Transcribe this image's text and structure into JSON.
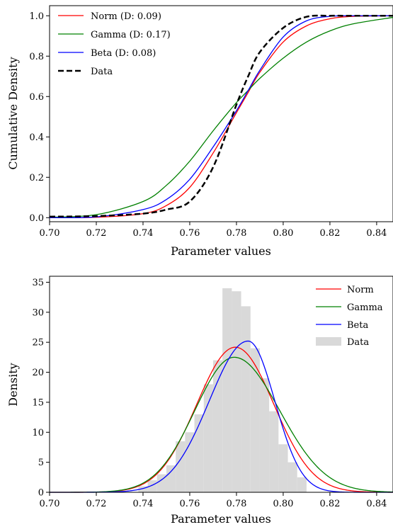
{
  "colors": {
    "norm": "#ff0000",
    "gamma": "#008000",
    "beta": "#0000ff",
    "data_line": "#000000",
    "data_hist": "#d9d9d9"
  },
  "chart_data": [
    {
      "type": "line",
      "xlabel": "Parameter values",
      "ylabel": "Cumulative Density",
      "xlim": [
        0.7,
        0.847
      ],
      "ylim": [
        -0.02,
        1.05
      ],
      "xticks": [
        "0.70",
        "0.72",
        "0.74",
        "0.76",
        "0.78",
        "0.80",
        "0.82",
        "0.84"
      ],
      "yticks": [
        "0.0",
        "0.2",
        "0.4",
        "0.6",
        "0.8",
        "1.0"
      ],
      "legend": "top-left",
      "x": [
        0.7,
        0.72,
        0.74,
        0.75,
        0.76,
        0.77,
        0.78,
        0.785,
        0.79,
        0.8,
        0.81,
        0.82,
        0.83,
        0.847
      ],
      "series": [
        {
          "name": "Norm (D: 0.09)",
          "style": "solid",
          "color_key": "norm",
          "values": [
            0.0,
            0.002,
            0.02,
            0.06,
            0.15,
            0.32,
            0.52,
            0.62,
            0.72,
            0.87,
            0.95,
            0.985,
            0.997,
            1.0
          ]
        },
        {
          "name": "Gamma (D: 0.17)",
          "style": "solid",
          "color_key": "gamma",
          "values": [
            0.002,
            0.015,
            0.08,
            0.16,
            0.28,
            0.43,
            0.57,
            0.63,
            0.69,
            0.79,
            0.87,
            0.925,
            0.96,
            0.992
          ]
        },
        {
          "name": "Beta (D: 0.08)",
          "style": "solid",
          "color_key": "beta",
          "values": [
            0.0,
            0.004,
            0.04,
            0.09,
            0.19,
            0.35,
            0.53,
            0.63,
            0.73,
            0.895,
            0.975,
            0.997,
            1.0,
            1.0
          ]
        },
        {
          "name": "Data",
          "style": "dashed",
          "color_key": "data_line",
          "values": [
            0.005,
            0.008,
            0.02,
            0.04,
            0.08,
            0.25,
            0.56,
            0.7,
            0.82,
            0.94,
            0.995,
            1.0,
            1.0,
            1.0
          ]
        }
      ]
    },
    {
      "type": "bar",
      "xlabel": "Parameter values",
      "ylabel": "Density",
      "xlim": [
        0.7,
        0.847
      ],
      "ylim": [
        0,
        36
      ],
      "xticks": [
        "0.70",
        "0.72",
        "0.74",
        "0.76",
        "0.78",
        "0.80",
        "0.82",
        "0.84"
      ],
      "yticks": [
        "0",
        "5",
        "10",
        "15",
        "20",
        "25",
        "30",
        "35"
      ],
      "legend": "top-right",
      "hist": {
        "name": "Data",
        "color_key": "data_hist",
        "bin_width": 0.004,
        "bin_starts": [
          0.738,
          0.742,
          0.746,
          0.75,
          0.754,
          0.758,
          0.762,
          0.766,
          0.77,
          0.774,
          0.778,
          0.782,
          0.786,
          0.79,
          0.794,
          0.798,
          0.802,
          0.806
        ],
        "values": [
          1.0,
          2.0,
          3.0,
          4.5,
          8.5,
          10.0,
          13.0,
          18.0,
          22.0,
          34.0,
          33.5,
          31.0,
          24.0,
          19.0,
          13.5,
          8.0,
          5.0,
          2.5
        ]
      },
      "curves": [
        {
          "name": "Norm",
          "color_key": "norm",
          "kind": "normal",
          "mu": 0.7795,
          "sigma": 0.0165
        },
        {
          "name": "Gamma",
          "color_key": "gamma",
          "kind": "skewed",
          "mu": 0.779,
          "sigma": 0.0177,
          "peak": 22.5
        },
        {
          "name": "Beta",
          "color_key": "beta",
          "kind": "skewed",
          "mu": 0.785,
          "sigma": 0.0158,
          "peak": 25.2
        }
      ]
    }
  ]
}
